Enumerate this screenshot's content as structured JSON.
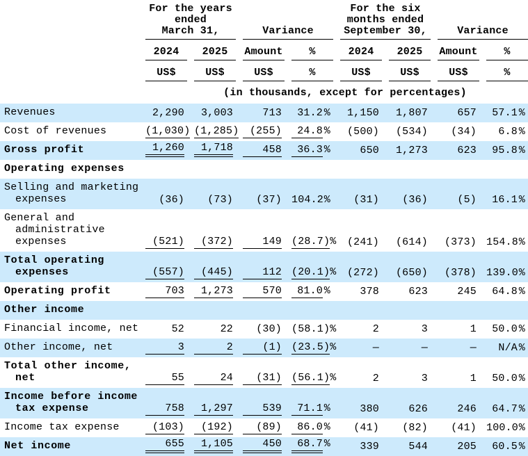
{
  "colors": {
    "row_highlight": "#cdeafc",
    "text": "#000000",
    "rule_lines": "#000000",
    "background": "#ffffff"
  },
  "header": {
    "groups": [
      {
        "lines": [
          "For the  years",
          "ended",
          "March 31,"
        ]
      },
      {
        "lines": [
          "Variance"
        ]
      },
      {
        "lines": [
          "For the six",
          "months ended",
          "September 30,"
        ]
      },
      {
        "lines": [
          "Variance"
        ]
      }
    ],
    "period_labels": [
      "2024",
      "2025",
      "Amount",
      "%",
      "2024",
      "2025",
      "Amount",
      "%"
    ],
    "currency_labels": [
      "US$",
      "US$",
      "US$",
      "%",
      "US$",
      "US$",
      "US$",
      "%"
    ],
    "note": "(in thousands, except for percentages)"
  },
  "rows": [
    {
      "label_lines": [
        "Revenues"
      ],
      "bold": false,
      "highlight": true,
      "values": [
        "2,290",
        "3,003",
        "713",
        "31.2%",
        "1,150",
        "1,807",
        "657",
        "57.1%"
      ],
      "underlines": [
        "n",
        "n",
        "n",
        "n",
        "n",
        "n",
        "n",
        "n"
      ]
    },
    {
      "label_lines": [
        "Cost of revenues"
      ],
      "bold": false,
      "highlight": false,
      "values": [
        "(1,030)",
        "(1,285)",
        "(255)",
        "24.8%",
        "(500)",
        "(534)",
        "(34)",
        "6.8%"
      ],
      "underlines": [
        "s",
        "s",
        "s",
        "s",
        "n",
        "n",
        "n",
        "n"
      ]
    },
    {
      "label_lines": [
        "Gross profit"
      ],
      "bold": true,
      "highlight": true,
      "values": [
        "1,260",
        "1,718",
        "458",
        "36.3%",
        "650",
        "1,273",
        "623",
        "95.8%"
      ],
      "underlines": [
        "d",
        "d",
        "s",
        "s",
        "n",
        "n",
        "n",
        "n"
      ]
    },
    {
      "label_lines": [
        "Operating expenses"
      ],
      "bold": true,
      "highlight": false,
      "values": [
        "",
        "",
        "",
        "",
        "",
        "",
        "",
        ""
      ],
      "underlines": [
        "n",
        "n",
        "n",
        "n",
        "n",
        "n",
        "n",
        "n"
      ]
    },
    {
      "label_lines": [
        "Selling and marketing",
        "expenses"
      ],
      "bold": false,
      "highlight": true,
      "values": [
        "(36)",
        "(73)",
        "(37)",
        "104.2%",
        "(31)",
        "(36)",
        "(5)",
        "16.1%"
      ],
      "underlines": [
        "n",
        "n",
        "n",
        "n",
        "n",
        "n",
        "n",
        "n"
      ]
    },
    {
      "label_lines": [
        "General and",
        "administrative",
        "expenses"
      ],
      "bold": false,
      "highlight": false,
      "values": [
        "(521)",
        "(372)",
        "149",
        "(28.7)%",
        "(241)",
        "(614)",
        "(373)",
        "154.8%"
      ],
      "underlines": [
        "s",
        "s",
        "s",
        "s",
        "n",
        "n",
        "n",
        "n"
      ]
    },
    {
      "label_lines": [
        "Total operating",
        "expenses"
      ],
      "bold": true,
      "highlight": true,
      "values": [
        "(557)",
        "(445)",
        "112",
        "(20.1)%",
        "(272)",
        "(650)",
        "(378)",
        "139.0%"
      ],
      "underlines": [
        "s",
        "s",
        "s",
        "s",
        "n",
        "n",
        "n",
        "n"
      ]
    },
    {
      "label_lines": [
        "Operating profit"
      ],
      "bold": true,
      "highlight": false,
      "values": [
        "703",
        "1,273",
        "570",
        "81.0%",
        "378",
        "623",
        "245",
        "64.8%"
      ],
      "underlines": [
        "s",
        "s",
        "s",
        "s",
        "n",
        "n",
        "n",
        "n"
      ]
    },
    {
      "label_lines": [
        "Other income"
      ],
      "bold": true,
      "highlight": true,
      "values": [
        "",
        "",
        "",
        "",
        "",
        "",
        "",
        ""
      ],
      "underlines": [
        "n",
        "n",
        "n",
        "n",
        "n",
        "n",
        "n",
        "n"
      ]
    },
    {
      "label_lines": [
        "Financial income, net"
      ],
      "bold": false,
      "highlight": false,
      "values": [
        "52",
        "22",
        "(30)",
        "(58.1)%",
        "2",
        "3",
        "1",
        "50.0%"
      ],
      "underlines": [
        "n",
        "n",
        "n",
        "n",
        "n",
        "n",
        "n",
        "n"
      ]
    },
    {
      "label_lines": [
        "Other income, net"
      ],
      "bold": false,
      "highlight": true,
      "values": [
        "3",
        "2",
        "(1)",
        "(23.5)%",
        "—",
        "—",
        "—",
        "N/A%"
      ],
      "underlines": [
        "s",
        "s",
        "s",
        "s",
        "n",
        "n",
        "n",
        "n"
      ]
    },
    {
      "label_lines": [
        "Total other income,",
        "net"
      ],
      "bold": true,
      "highlight": false,
      "values": [
        "55",
        "24",
        "(31)",
        "(56.1)%",
        "2",
        "3",
        "1",
        "50.0%"
      ],
      "underlines": [
        "s",
        "s",
        "s",
        "s",
        "n",
        "n",
        "n",
        "n"
      ]
    },
    {
      "label_lines": [
        "Income before income",
        "tax expense"
      ],
      "bold": true,
      "highlight": true,
      "values": [
        "758",
        "1,297",
        "539",
        "71.1%",
        "380",
        "626",
        "246",
        "64.7%"
      ],
      "underlines": [
        "s",
        "s",
        "s",
        "s",
        "n",
        "n",
        "n",
        "n"
      ]
    },
    {
      "label_lines": [
        "Income tax expense"
      ],
      "bold": false,
      "highlight": false,
      "values": [
        "(103)",
        "(192)",
        "(89)",
        "86.0%",
        "(41)",
        "(82)",
        "(41)",
        "100.0%"
      ],
      "underlines": [
        "s",
        "s",
        "s",
        "s",
        "n",
        "n",
        "n",
        "n"
      ]
    },
    {
      "label_lines": [
        "Net income"
      ],
      "bold": true,
      "highlight": true,
      "values": [
        "655",
        "1,105",
        "450",
        "68.7%",
        "339",
        "544",
        "205",
        "60.5%"
      ],
      "underlines": [
        "d",
        "d",
        "d",
        "d",
        "n",
        "n",
        "n",
        "n"
      ]
    }
  ]
}
